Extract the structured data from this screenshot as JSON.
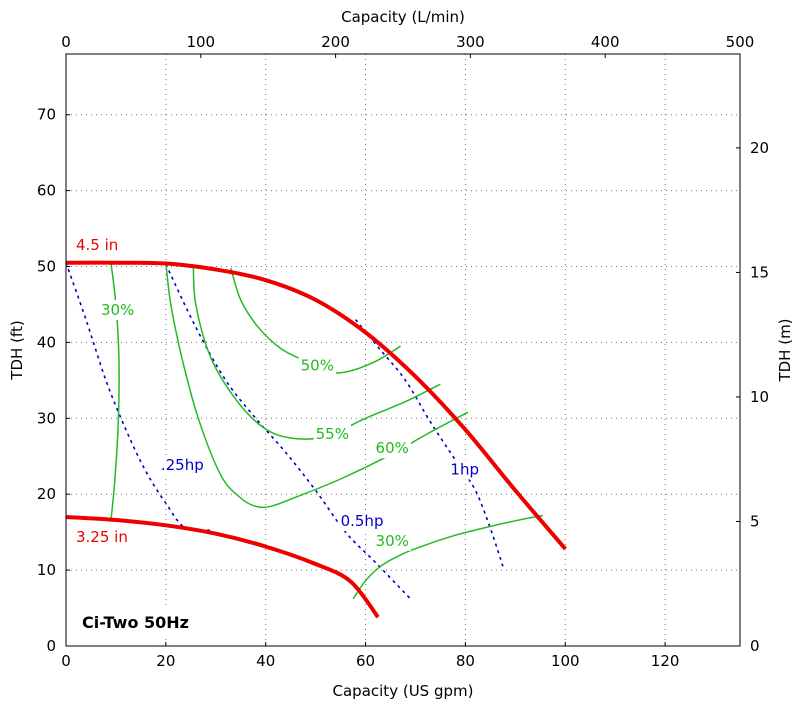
{
  "chart_data": {
    "type": "line",
    "title": "Ci-Two 50Hz",
    "xlabel": "Capacity (US gpm)",
    "ylabel": "TDH (ft)",
    "x2label": "Capacity (L/min)",
    "y2label": "TDH (m)",
    "xlim": [
      0,
      135
    ],
    "ylim": [
      0,
      78
    ],
    "x2lim": [
      0,
      500
    ],
    "y2lim": [
      0,
      23.77
    ],
    "x_ticks": [
      "0",
      "20",
      "40",
      "60",
      "80",
      "100",
      "120"
    ],
    "y_ticks": [
      "0",
      "10",
      "20",
      "30",
      "40",
      "50",
      "60",
      "70"
    ],
    "x2_ticks": [
      "0",
      "100",
      "200",
      "300",
      "400",
      "500"
    ],
    "y2_ticks": [
      "0",
      "5",
      "10",
      "15",
      "20"
    ],
    "grid": true,
    "series": [
      {
        "name": "4.5 in",
        "kind": "impeller",
        "color": "#ee0000",
        "label_at": [
          2,
          52.2
        ],
        "points": [
          [
            0,
            50.5
          ],
          [
            10,
            50.5
          ],
          [
            20,
            50.4
          ],
          [
            30,
            49.6
          ],
          [
            40,
            48.2
          ],
          [
            50,
            45.6
          ],
          [
            60,
            41.3
          ],
          [
            70,
            35.5
          ],
          [
            80,
            28.5
          ],
          [
            90,
            20.5
          ],
          [
            100,
            12.8
          ]
        ]
      },
      {
        "name": "3.25 in",
        "kind": "impeller",
        "color": "#ee0000",
        "label_at": [
          2,
          13.7
        ],
        "points": [
          [
            0,
            17
          ],
          [
            10,
            16.6
          ],
          [
            20,
            15.9
          ],
          [
            30,
            14.8
          ],
          [
            40,
            13.1
          ],
          [
            50,
            10.8
          ],
          [
            57,
            8.5
          ],
          [
            62.5,
            3.8
          ]
        ]
      },
      {
        "name": "30%",
        "kind": "efficiency",
        "color": "#22bb22",
        "label_at": [
          7,
          43.6
        ],
        "points": [
          [
            9,
            50.5
          ],
          [
            10,
            45
          ],
          [
            10.6,
            38
          ],
          [
            10.5,
            30
          ],
          [
            9.8,
            22
          ],
          [
            9,
            16.5
          ]
        ]
      },
      {
        "name": "50%",
        "kind": "efficiency",
        "color": "#22bb22",
        "label_at": [
          47,
          36.3
        ],
        "points": [
          [
            33,
            49.8
          ],
          [
            35,
            45.6
          ],
          [
            38.5,
            42
          ],
          [
            43,
            39.2
          ],
          [
            48,
            37.5
          ],
          [
            52,
            36.2
          ],
          [
            56,
            36.1
          ],
          [
            62,
            37.5
          ],
          [
            67,
            39.5
          ]
        ]
      },
      {
        "name": "55%",
        "kind": "efficiency",
        "color": "#22bb22",
        "label_at": [
          50,
          27.3
        ],
        "points": [
          [
            25.5,
            50.3
          ],
          [
            26,
            45
          ],
          [
            29,
            38
          ],
          [
            34,
            32.5
          ],
          [
            39.5,
            28.8
          ],
          [
            45,
            27.4
          ],
          [
            52,
            27.6
          ],
          [
            60,
            30
          ],
          [
            68,
            32.2
          ],
          [
            75,
            34.5
          ]
        ]
      },
      {
        "name": "60%",
        "kind": "efficiency",
        "color": "#22bb22",
        "label_at": [
          62,
          25.4
        ],
        "points": [
          [
            20,
            50.4
          ],
          [
            21,
            45
          ],
          [
            23.2,
            38
          ],
          [
            26.5,
            30
          ],
          [
            31,
            22.5
          ],
          [
            35,
            19.5
          ],
          [
            38,
            18.4
          ],
          [
            41,
            18.4
          ],
          [
            46,
            19.6
          ],
          [
            55,
            22
          ],
          [
            65,
            25.2
          ],
          [
            72.5,
            28
          ],
          [
            80.5,
            30.8
          ]
        ]
      },
      {
        "name": "30%",
        "kind": "efficiency",
        "color": "#22bb22",
        "label_at": [
          62,
          13.2
        ],
        "points": [
          [
            57.5,
            6.2
          ],
          [
            60,
            8.6
          ],
          [
            63,
            10.5
          ],
          [
            67,
            12
          ],
          [
            72,
            13.3
          ],
          [
            78,
            14.6
          ],
          [
            84,
            15.6
          ],
          [
            90,
            16.5
          ],
          [
            95.5,
            17.2
          ]
        ]
      },
      {
        "name": ".25hp",
        "kind": "power",
        "color": "#0000cc",
        "label_at": [
          19,
          23.2
        ],
        "points": [
          [
            0,
            50.5
          ],
          [
            4,
            43
          ],
          [
            8,
            35
          ],
          [
            12,
            28.5
          ],
          [
            16,
            23
          ],
          [
            20,
            18.8
          ],
          [
            24,
            15.5
          ],
          [
            29.5,
            15.3
          ]
        ]
      },
      {
        "name": "0.5hp",
        "kind": "power",
        "color": "#0000cc",
        "label_at": [
          55,
          15.8
        ],
        "points": [
          [
            20,
            50.3
          ],
          [
            26,
            42
          ],
          [
            32,
            35
          ],
          [
            38,
            30
          ],
          [
            44,
            25.5
          ],
          [
            50,
            20.5
          ],
          [
            56,
            15
          ],
          [
            62,
            11
          ],
          [
            69,
            6.2
          ]
        ]
      },
      {
        "name": "1hp",
        "kind": "power",
        "color": "#0000cc",
        "label_at": [
          77,
          22.6
        ],
        "points": [
          [
            58,
            43
          ],
          [
            63,
            39
          ],
          [
            68,
            35
          ],
          [
            73,
            29.5
          ],
          [
            78,
            24.5
          ],
          [
            82,
            20.5
          ],
          [
            85,
            15.5
          ],
          [
            87.5,
            10.5
          ]
        ]
      }
    ]
  }
}
